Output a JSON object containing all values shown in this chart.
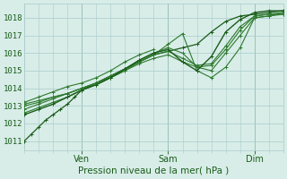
{
  "xlabel": "Pression niveau de la mer( hPa )",
  "ylim": [
    1010.5,
    1018.8
  ],
  "yticks": [
    1011,
    1012,
    1013,
    1014,
    1015,
    1016,
    1017,
    1018
  ],
  "xlim": [
    0,
    108
  ],
  "xtick_positions": [
    24,
    60,
    96
  ],
  "xtick_labels": [
    "Ven",
    "Sam",
    "Dim"
  ],
  "xtick_minor_count": 18,
  "bg_color": "#d8ede8",
  "grid_color": "#aacaca",
  "line_color_dark": "#1a5c1a",
  "line_color_mid": "#2d7a2d",
  "lines": [
    {
      "x": [
        0,
        3,
        6,
        9,
        12,
        15,
        18,
        21,
        24,
        30,
        36,
        42,
        48,
        54,
        60,
        66,
        72,
        78,
        84,
        90,
        96,
        102,
        108
      ],
      "y": [
        1011.0,
        1011.4,
        1011.8,
        1012.2,
        1012.5,
        1012.8,
        1013.1,
        1013.5,
        1013.9,
        1014.3,
        1014.7,
        1015.1,
        1015.5,
        1015.9,
        1016.1,
        1016.3,
        1016.5,
        1017.2,
        1017.8,
        1018.1,
        1018.2,
        1018.3,
        1018.4
      ],
      "lw": 0.9,
      "color": "#1a5c1a"
    },
    {
      "x": [
        0,
        6,
        12,
        18,
        24,
        30,
        36,
        42,
        48,
        54,
        60,
        66,
        72,
        78,
        84,
        90,
        96,
        102,
        108
      ],
      "y": [
        1012.6,
        1012.9,
        1013.2,
        1013.5,
        1013.9,
        1014.2,
        1014.6,
        1015.0,
        1015.5,
        1015.9,
        1016.5,
        1017.1,
        1015.0,
        1014.6,
        1015.2,
        1016.3,
        1018.0,
        1018.1,
        1018.2
      ],
      "lw": 0.8,
      "color": "#2d7a2d"
    },
    {
      "x": [
        0,
        6,
        12,
        18,
        24,
        30,
        36,
        42,
        48,
        54,
        60,
        66,
        72,
        78,
        84,
        90,
        96,
        102,
        108
      ],
      "y": [
        1012.8,
        1013.1,
        1013.4,
        1013.7,
        1014.0,
        1014.3,
        1014.7,
        1015.1,
        1015.6,
        1016.0,
        1016.3,
        1016.0,
        1015.2,
        1015.0,
        1016.0,
        1017.0,
        1018.0,
        1018.1,
        1018.3
      ],
      "lw": 0.8,
      "color": "#2d7a2d"
    },
    {
      "x": [
        0,
        6,
        12,
        18,
        24,
        30,
        36,
        42,
        48,
        54,
        60,
        66,
        72,
        78,
        84,
        90,
        96,
        102,
        108
      ],
      "y": [
        1013.1,
        1013.3,
        1013.5,
        1013.7,
        1014.0,
        1014.3,
        1014.6,
        1015.0,
        1015.4,
        1015.7,
        1015.9,
        1015.5,
        1015.2,
        1015.3,
        1016.2,
        1017.3,
        1018.1,
        1018.2,
        1018.3
      ],
      "lw": 0.8,
      "color": "#2d7a2d"
    },
    {
      "x": [
        0,
        6,
        12,
        18,
        24,
        30,
        36,
        42,
        48,
        54,
        60,
        66,
        72,
        78,
        84,
        90,
        96,
        102,
        108
      ],
      "y": [
        1013.0,
        1013.2,
        1013.5,
        1013.7,
        1014.0,
        1014.3,
        1014.7,
        1015.1,
        1015.5,
        1015.9,
        1016.1,
        1015.7,
        1015.3,
        1015.4,
        1016.4,
        1017.5,
        1018.1,
        1018.2,
        1018.2
      ],
      "lw": 0.8,
      "color": "#2d7a2d"
    },
    {
      "x": [
        0,
        6,
        12,
        18,
        24,
        30,
        36,
        42,
        48,
        54,
        60,
        66,
        72,
        78,
        84,
        90,
        96,
        102,
        108
      ],
      "y": [
        1012.5,
        1012.8,
        1013.1,
        1013.5,
        1013.9,
        1014.2,
        1014.6,
        1015.1,
        1015.6,
        1016.0,
        1016.2,
        1015.5,
        1015.0,
        1015.8,
        1017.2,
        1017.9,
        1018.3,
        1018.4,
        1018.4
      ],
      "lw": 1.0,
      "color": "#1a5c1a"
    },
    {
      "x": [
        0,
        6,
        12,
        18,
        24,
        30,
        36,
        42,
        48,
        54
      ],
      "y": [
        1013.2,
        1013.5,
        1013.8,
        1014.1,
        1014.3,
        1014.6,
        1015.0,
        1015.5,
        1015.9,
        1016.2
      ],
      "lw": 0.8,
      "color": "#2d7a2d"
    }
  ]
}
